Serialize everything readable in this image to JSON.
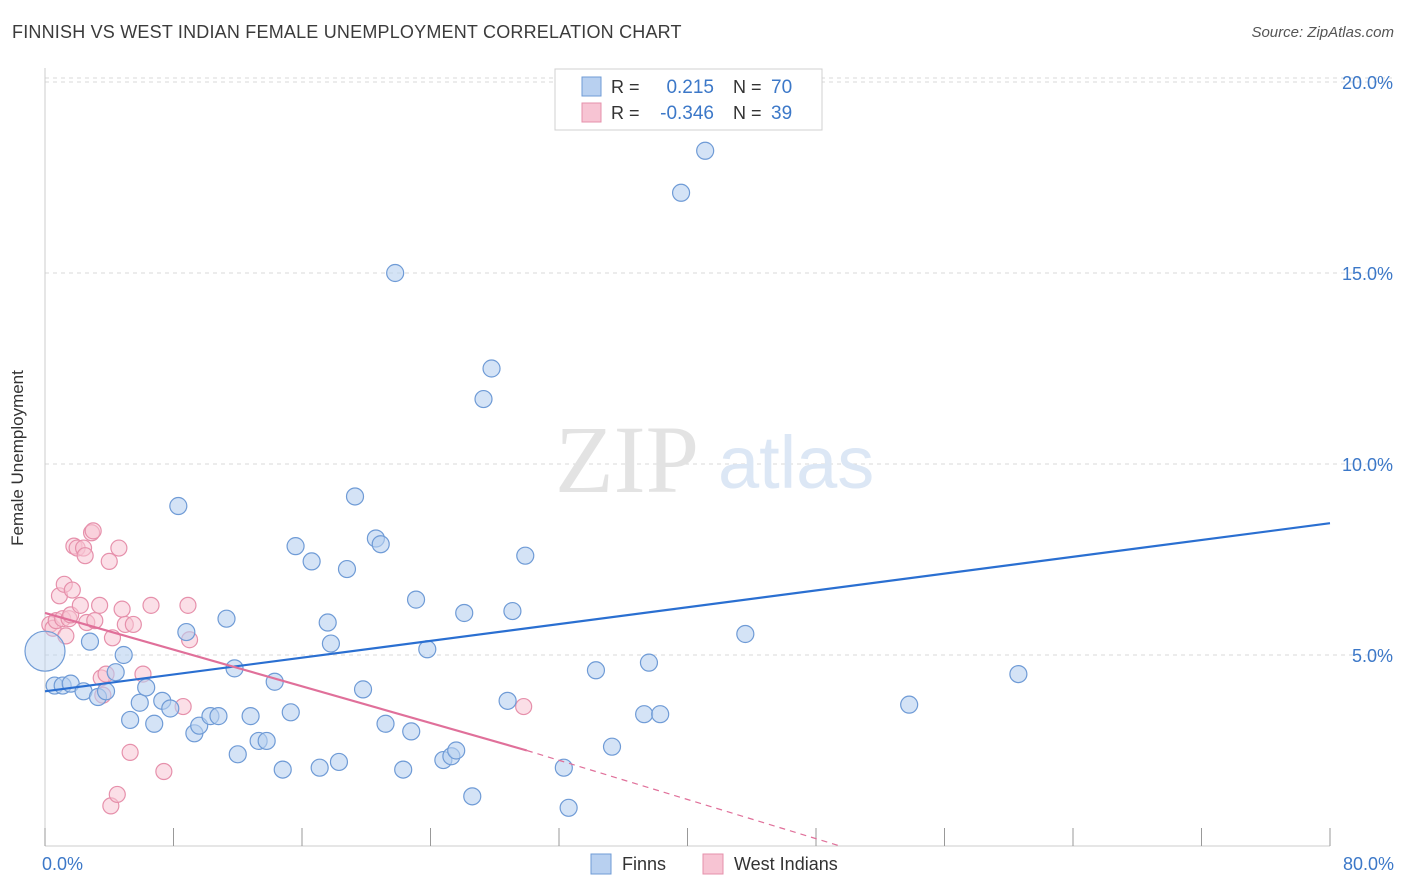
{
  "title": "FINNISH VS WEST INDIAN FEMALE UNEMPLOYMENT CORRELATION CHART",
  "source": "Source: ZipAtlas.com",
  "watermark": {
    "zip": "ZIP",
    "atlas": "atlas"
  },
  "legend_top": [
    {
      "r_label": "R =",
      "r_value": "0.215",
      "n_label": "N =",
      "n_value": "70"
    },
    {
      "r_label": "R =",
      "r_value": "-0.346",
      "n_label": "N =",
      "n_value": "39"
    }
  ],
  "colors": {
    "finns_fill": "#b8d0f0",
    "finns_stroke": "#6f9bd6",
    "finns_line": "#2a6fd1",
    "wi_fill": "#f7c4d3",
    "wi_stroke": "#e690ab",
    "wi_line": "#e0709a",
    "tick_text": "#3c78c8",
    "grid": "#d9d9d9"
  },
  "chart_data": {
    "type": "scatter",
    "xlabel": "",
    "ylabel": "Female Unemployment",
    "xlim": [
      0,
      80
    ],
    "ylim": [
      0,
      20.5
    ],
    "x_ticks": [
      0,
      8,
      16,
      24,
      32,
      40,
      48,
      56,
      64,
      72,
      80
    ],
    "x_tick_labels": [
      {
        "value": 0,
        "label": "0.0%"
      },
      {
        "value": 80,
        "label": "80.0%"
      }
    ],
    "y_ticks": [
      {
        "value": 5,
        "label": "5.0%"
      },
      {
        "value": 10,
        "label": "10.0%"
      },
      {
        "value": 15,
        "label": "15.0%"
      },
      {
        "value": 20,
        "label": "20.0%"
      }
    ],
    "series": [
      {
        "name": "Finns",
        "R": 0.215,
        "N": 70,
        "trend": {
          "x0": 0,
          "y0": 4.05,
          "x1": 80,
          "y1": 8.45
        },
        "points": [
          [
            0.0,
            5.1
          ],
          [
            0.6,
            4.2
          ],
          [
            1.1,
            4.2
          ],
          [
            1.6,
            4.25
          ],
          [
            2.4,
            4.05
          ],
          [
            2.8,
            5.35
          ],
          [
            3.3,
            3.9
          ],
          [
            3.8,
            4.05
          ],
          [
            4.4,
            4.55
          ],
          [
            4.9,
            5.0
          ],
          [
            5.3,
            3.3
          ],
          [
            5.9,
            3.75
          ],
          [
            6.3,
            4.15
          ],
          [
            6.8,
            3.2
          ],
          [
            7.3,
            3.8
          ],
          [
            7.8,
            3.6
          ],
          [
            8.3,
            8.9
          ],
          [
            8.8,
            5.6
          ],
          [
            9.3,
            2.95
          ],
          [
            9.6,
            3.15
          ],
          [
            10.3,
            3.4
          ],
          [
            10.8,
            3.4
          ],
          [
            11.3,
            5.95
          ],
          [
            11.8,
            4.65
          ],
          [
            12.0,
            2.4
          ],
          [
            12.8,
            3.4
          ],
          [
            13.3,
            2.75
          ],
          [
            13.8,
            2.75
          ],
          [
            14.3,
            4.3
          ],
          [
            14.8,
            2.0
          ],
          [
            15.3,
            3.5
          ],
          [
            15.6,
            7.85
          ],
          [
            16.6,
            7.45
          ],
          [
            17.1,
            2.05
          ],
          [
            17.6,
            5.85
          ],
          [
            17.8,
            5.3
          ],
          [
            18.3,
            2.2
          ],
          [
            18.8,
            7.25
          ],
          [
            19.3,
            9.15
          ],
          [
            19.8,
            4.1
          ],
          [
            20.6,
            8.05
          ],
          [
            20.9,
            7.9
          ],
          [
            21.2,
            3.2
          ],
          [
            21.8,
            15.0
          ],
          [
            22.3,
            2.0
          ],
          [
            22.8,
            3.0
          ],
          [
            23.1,
            6.45
          ],
          [
            23.8,
            5.15
          ],
          [
            24.8,
            2.25
          ],
          [
            25.3,
            2.35
          ],
          [
            25.6,
            2.5
          ],
          [
            26.1,
            6.1
          ],
          [
            26.6,
            1.3
          ],
          [
            27.3,
            11.7
          ],
          [
            27.8,
            12.5
          ],
          [
            28.8,
            3.8
          ],
          [
            29.1,
            6.15
          ],
          [
            29.9,
            7.6
          ],
          [
            32.3,
            2.05
          ],
          [
            32.6,
            1.0
          ],
          [
            34.3,
            4.6
          ],
          [
            35.3,
            2.6
          ],
          [
            37.3,
            3.45
          ],
          [
            37.6,
            4.8
          ],
          [
            38.3,
            3.45
          ],
          [
            39.6,
            17.1
          ],
          [
            41.1,
            18.2
          ],
          [
            43.6,
            5.55
          ],
          [
            53.8,
            3.7
          ],
          [
            60.6,
            4.5
          ]
        ]
      },
      {
        "name": "West Indians",
        "R": -0.346,
        "N": 39,
        "trend": {
          "x0": 0,
          "y0": 6.1,
          "x1": 30,
          "y1": 2.5
        },
        "trend_dashed": {
          "x0": 30,
          "y0": 2.5,
          "x1": 49.5,
          "y1": 0.0
        },
        "points": [
          [
            0.3,
            5.8
          ],
          [
            0.5,
            5.7
          ],
          [
            0.7,
            5.9
          ],
          [
            0.9,
            6.55
          ],
          [
            1.1,
            5.95
          ],
          [
            1.2,
            6.85
          ],
          [
            1.3,
            5.5
          ],
          [
            1.5,
            5.95
          ],
          [
            1.6,
            6.05
          ],
          [
            1.7,
            6.7
          ],
          [
            1.8,
            7.85
          ],
          [
            2.0,
            7.8
          ],
          [
            2.2,
            6.3
          ],
          [
            2.4,
            7.8
          ],
          [
            2.5,
            7.6
          ],
          [
            2.6,
            5.85
          ],
          [
            2.9,
            8.2
          ],
          [
            3.0,
            8.25
          ],
          [
            3.1,
            5.9
          ],
          [
            3.4,
            6.3
          ],
          [
            3.5,
            4.4
          ],
          [
            3.6,
            3.95
          ],
          [
            3.8,
            4.5
          ],
          [
            4.0,
            7.45
          ],
          [
            4.1,
            1.05
          ],
          [
            4.2,
            5.45
          ],
          [
            4.5,
            1.35
          ],
          [
            4.6,
            7.8
          ],
          [
            4.8,
            6.2
          ],
          [
            5.0,
            5.8
          ],
          [
            5.3,
            2.45
          ],
          [
            5.5,
            5.8
          ],
          [
            6.1,
            4.5
          ],
          [
            6.6,
            6.3
          ],
          [
            7.4,
            1.95
          ],
          [
            8.6,
            3.65
          ],
          [
            8.9,
            6.3
          ],
          [
            9.0,
            5.4
          ],
          [
            29.8,
            3.65
          ]
        ]
      }
    ],
    "legend_bottom": [
      "Finns",
      "West Indians"
    ]
  }
}
